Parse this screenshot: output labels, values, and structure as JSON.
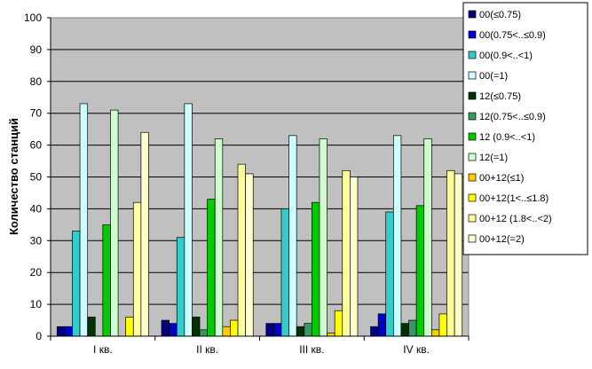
{
  "chart_data": {
    "type": "bar",
    "title": "",
    "xlabel": "",
    "ylabel": "Количество станций",
    "ylim": [
      0,
      100
    ],
    "yticks": [
      0,
      10,
      20,
      30,
      40,
      50,
      60,
      70,
      80,
      90,
      100
    ],
    "grid": true,
    "plot_background": "#c0c0c0",
    "legend_position": "right",
    "categories": [
      "I кв.",
      "II кв.",
      "III кв.",
      "IV кв."
    ],
    "series": [
      {
        "name": "00(≤0.75)",
        "color": "#000080",
        "values": [
          3,
          5,
          4,
          3
        ]
      },
      {
        "name": "00(0.75<..≤0.9)",
        "color": "#0000cc",
        "values": [
          3,
          4,
          4,
          7
        ]
      },
      {
        "name": "00(0.9<..<1)",
        "color": "#33cccc",
        "values": [
          33,
          31,
          40,
          39
        ]
      },
      {
        "name": "00(=1)",
        "color": "#ccffff",
        "values": [
          73,
          73,
          63,
          63
        ]
      },
      {
        "name": "12(≤0.75)",
        "color": "#003300",
        "values": [
          6,
          6,
          3,
          4
        ]
      },
      {
        "name": "12(0.75<..≤0.9)",
        "color": "#339966",
        "values": [
          0,
          2,
          4,
          5
        ]
      },
      {
        "name": "12 (0.9<..<1)",
        "color": "#00cc00",
        "values": [
          35,
          43,
          42,
          41
        ]
      },
      {
        "name": "12(=1)",
        "color": "#ccffcc",
        "values": [
          71,
          62,
          62,
          62
        ]
      },
      {
        "name": "00+12(≤1)",
        "color": "#ffcc00",
        "values": [
          0,
          3,
          1,
          2
        ]
      },
      {
        "name": "00+12(1<..≤1.8)",
        "color": "#ffff00",
        "values": [
          6,
          5,
          8,
          7
        ]
      },
      {
        "name": "00+12 (1.8<..<2)",
        "color": "#ffff99",
        "values": [
          42,
          54,
          52,
          52
        ]
      },
      {
        "name": "00+12(=2)",
        "color": "#ffffcc",
        "values": [
          64,
          51,
          50,
          51
        ]
      }
    ]
  }
}
